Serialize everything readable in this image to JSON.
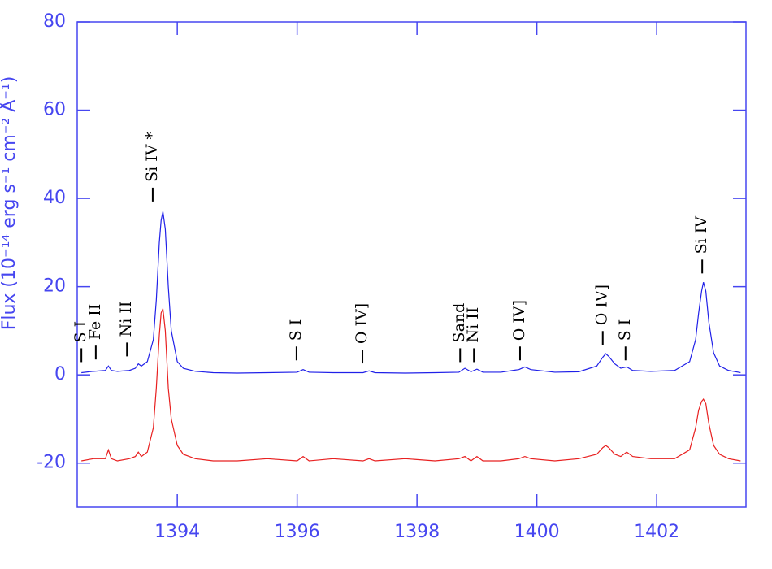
{
  "chart_data": {
    "type": "line",
    "ylabel": "Flux (10⁻¹⁴ erg s⁻¹ cm⁻² Å⁻¹)",
    "axis_color": "#4646f0",
    "xlim": [
      1392.33,
      1403.49
    ],
    "xticks": [
      1394,
      1396,
      1398,
      1400,
      1402
    ],
    "ylim": [
      -30,
      80
    ],
    "yticks": [
      -20,
      0,
      20,
      40,
      60,
      80
    ],
    "x": [
      1392.4,
      1392.6,
      1392.8,
      1392.85,
      1392.9,
      1393.0,
      1393.2,
      1393.3,
      1393.35,
      1393.4,
      1393.5,
      1393.6,
      1393.65,
      1393.7,
      1393.73,
      1393.76,
      1393.8,
      1393.85,
      1393.9,
      1394.0,
      1394.1,
      1394.3,
      1394.6,
      1395.0,
      1395.5,
      1396.0,
      1396.1,
      1396.2,
      1396.6,
      1397.1,
      1397.2,
      1397.3,
      1397.8,
      1398.3,
      1398.7,
      1398.8,
      1398.9,
      1399.0,
      1399.1,
      1399.4,
      1399.7,
      1399.8,
      1399.9,
      1400.3,
      1400.7,
      1401.0,
      1401.1,
      1401.15,
      1401.2,
      1401.3,
      1401.4,
      1401.5,
      1401.6,
      1401.9,
      1402.3,
      1402.55,
      1402.65,
      1402.7,
      1402.75,
      1402.78,
      1402.82,
      1402.87,
      1402.95,
      1403.05,
      1403.2,
      1403.4
    ],
    "series": [
      {
        "color": "#2020e8",
        "values": [
          0.5,
          0.8,
          1,
          2,
          1,
          0.8,
          1,
          1.5,
          2.5,
          2,
          3,
          8,
          17,
          30,
          35,
          37,
          33,
          20,
          10,
          3,
          1.5,
          0.8,
          0.5,
          0.4,
          0.5,
          0.6,
          1.2,
          0.6,
          0.5,
          0.5,
          0.9,
          0.5,
          0.4,
          0.5,
          0.6,
          1.5,
          0.7,
          1.3,
          0.6,
          0.6,
          1.2,
          1.8,
          1.2,
          0.6,
          0.7,
          2,
          4,
          4.8,
          4.2,
          2.5,
          1.5,
          1.8,
          1,
          0.8,
          1,
          3,
          8,
          14,
          19,
          21,
          19,
          12,
          5,
          2,
          1,
          0.5
        ]
      },
      {
        "color": "#e82020",
        "values": [
          -19.5,
          -19,
          -19,
          -17,
          -19,
          -19.5,
          -19,
          -18.5,
          -17.5,
          -18.5,
          -17.5,
          -12,
          -3,
          9,
          14,
          15,
          10,
          -3,
          -10,
          -16,
          -18,
          -19,
          -19.5,
          -19.5,
          -19,
          -19.5,
          -18.5,
          -19.5,
          -19,
          -19.5,
          -19,
          -19.5,
          -19,
          -19.5,
          -19,
          -18.5,
          -19.5,
          -18.5,
          -19.5,
          -19.5,
          -19,
          -18.5,
          -19,
          -19.5,
          -19,
          -18,
          -16.5,
          -16,
          -16.5,
          -18,
          -18.5,
          -17.5,
          -18.5,
          -19,
          -19,
          -17,
          -12,
          -8,
          -6,
          -5.5,
          -6.5,
          -11,
          -16,
          -18,
          -19,
          -19.5
        ]
      }
    ],
    "annotations": [
      {
        "text": "S I",
        "x": 1392.4,
        "y": 2.9
      },
      {
        "text": "Fe II",
        "x": 1392.64,
        "y": 3.5
      },
      {
        "text": "Ni II",
        "x": 1393.16,
        "y": 4.2
      },
      {
        "text": "Si IV *",
        "x": 1393.59,
        "y": 39.3
      },
      {
        "text": "S I",
        "x": 1395.99,
        "y": 3.3
      },
      {
        "text": "O IV]",
        "x": 1397.09,
        "y": 2.6
      },
      {
        "text": "Sand",
        "x": 1398.72,
        "y": 2.9
      },
      {
        "text": "Ni II",
        "x": 1398.95,
        "y": 2.9
      },
      {
        "text": "O IV]",
        "x": 1399.72,
        "y": 3.3
      },
      {
        "text": "O IV]",
        "x": 1401.1,
        "y": 6.8
      },
      {
        "text": "S I",
        "x": 1401.48,
        "y": 3.3
      },
      {
        "text": "Si IV",
        "x": 1402.76,
        "y": 23
      }
    ]
  }
}
